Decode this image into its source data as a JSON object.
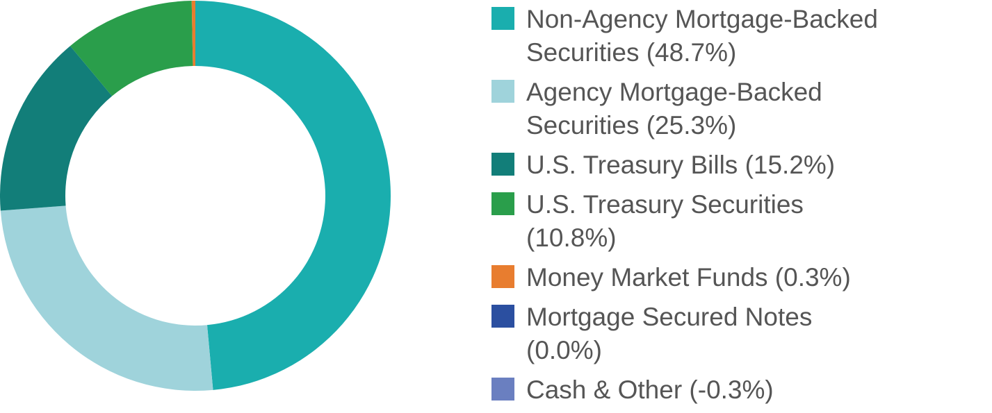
{
  "chart_data": {
    "type": "donut",
    "categories": [
      "Non-Agency Mortgage-Backed Securities (48.7%)",
      "Agency Mortgage-Backed Securities (25.3%)",
      "U.S. Treasury Bills (15.2%)",
      "U.S. Treasury Securities (10.8%)",
      "Money Market Funds (0.3%)",
      "Mortgage Secured Notes (0.0%)",
      "Cash & Other (-0.3%)"
    ],
    "values": [
      48.7,
      25.3,
      15.2,
      10.8,
      0.3,
      0.0,
      -0.3
    ],
    "colors": [
      "#1aaeae",
      "#9fd3db",
      "#127e79",
      "#2a9e4b",
      "#e87d2f",
      "#2b4fa0",
      "#6a7fc0"
    ],
    "legend": "right"
  }
}
